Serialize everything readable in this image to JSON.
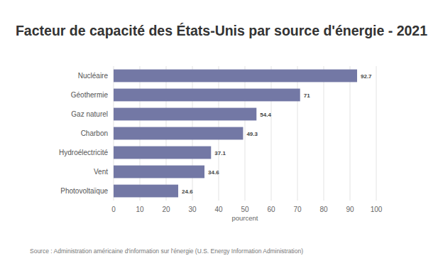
{
  "chart_data": {
    "type": "bar",
    "orientation": "horizontal",
    "title": "Facteur de capacité des États-Unis par source d'énergie - 2021",
    "xlabel": "pourcent",
    "source": "Source : Administration américaine d'information sur l'énergie (U.S. Energy Information Administration)",
    "categories": [
      "Nucléaire",
      "Géothermie",
      "Gaz naturel",
      "Charbon",
      "Hydroélectricité",
      "Vent",
      "Photovoltaïque"
    ],
    "values": [
      92.7,
      71,
      54.4,
      49.3,
      37.1,
      34.6,
      24.6
    ],
    "color": "#7378a5",
    "xlim": [
      0,
      100
    ],
    "xticks": [
      0,
      10,
      20,
      30,
      40,
      50,
      60,
      70,
      80,
      90,
      100
    ],
    "grid": true,
    "data_labels": true
  }
}
